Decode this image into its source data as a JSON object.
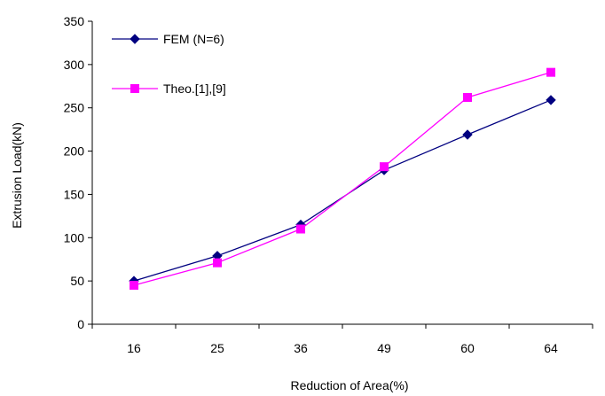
{
  "chart_data": {
    "type": "line",
    "categories": [
      "16",
      "25",
      "36",
      "49",
      "60",
      "64"
    ],
    "series": [
      {
        "name": "FEM    (N=6)",
        "values": [
          50,
          79,
          115,
          178,
          219,
          259
        ],
        "color": "#000080",
        "marker": "diamond"
      },
      {
        "name": "Theo.[1],[9]",
        "values": [
          45,
          71,
          110,
          182,
          262,
          291
        ],
        "color": "#ff00ff",
        "marker": "square"
      }
    ],
    "title": "",
    "xlabel": "Reduction of Area(%)",
    "ylabel": "Extrusion Load(kN)",
    "ylim": [
      0,
      350
    ],
    "yticks": [
      "0",
      "50",
      "100",
      "150",
      "200",
      "250",
      "300",
      "350"
    ],
    "grid": false,
    "legend": "top-left"
  }
}
